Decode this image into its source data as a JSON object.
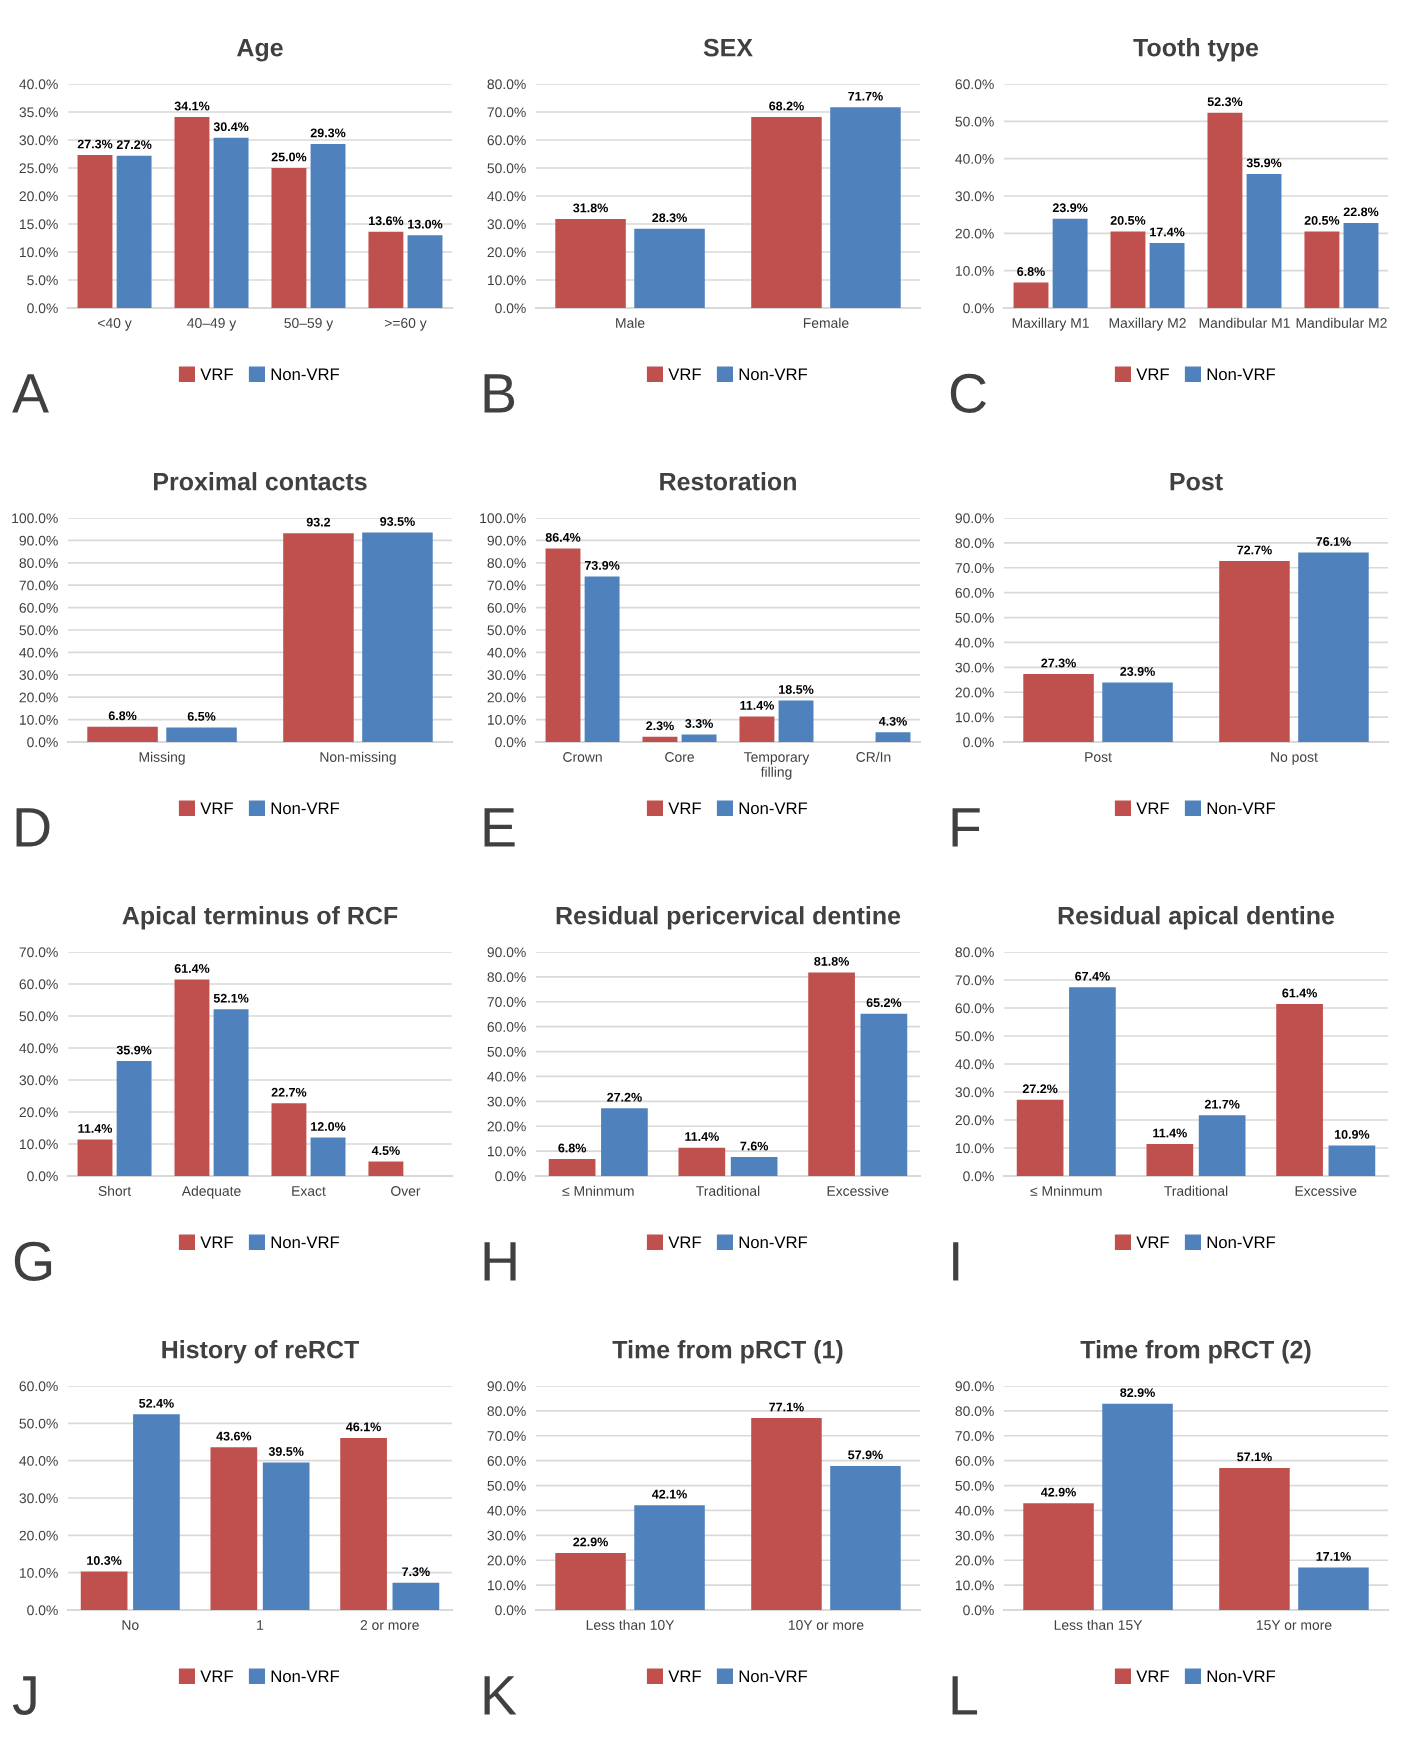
{
  "chart_data": [
    {
      "type": "bar",
      "title": "Age",
      "categories": [
        "<40 y",
        "40–49 y",
        "50–59 y",
        ">=60 y"
      ],
      "series": [
        {
          "name": "VRF",
          "color": "#c0504d",
          "values": [
            27.3,
            34.1,
            25.0,
            13.6
          ],
          "value_labels": [
            "27.3%",
            "34.1%",
            "25.0%",
            "13.6%"
          ]
        },
        {
          "name": "Non-VRF",
          "color": "#4f81bd",
          "values": [
            27.2,
            30.4,
            29.3,
            13.0
          ],
          "value_labels": [
            "27.2%",
            "30.4%",
            "29.3%",
            "13.0%"
          ]
        }
      ],
      "ylim": [
        0,
        40
      ],
      "yticks": [
        {
          "value": 0,
          "label": "0.0%"
        },
        {
          "value": 5,
          "label": "5.0%"
        },
        {
          "value": 10,
          "label": "10.0%"
        },
        {
          "value": 15,
          "label": "15.0%"
        },
        {
          "value": 20,
          "label": "20.0%"
        },
        {
          "value": 25,
          "label": "25.0%"
        },
        {
          "value": 30,
          "label": "30.0%"
        },
        {
          "value": 35,
          "label": "35.0%"
        },
        {
          "value": 40,
          "label": "40.0%"
        }
      ],
      "grid": "y",
      "legend": "bottom",
      "annotations": [
        "A"
      ]
    },
    {
      "type": "bar",
      "title": "SEX",
      "categories": [
        "Male",
        "Female"
      ],
      "series": [
        {
          "name": "VRF",
          "color": "#c0504d",
          "values": [
            31.8,
            68.2
          ],
          "value_labels": [
            "31.8%",
            "68.2%"
          ]
        },
        {
          "name": "Non-VRF",
          "color": "#4f81bd",
          "values": [
            28.3,
            71.7
          ],
          "value_labels": [
            "28.3%",
            "71.7%"
          ]
        }
      ],
      "ylim": [
        0,
        80
      ],
      "yticks": [
        {
          "value": 0,
          "label": "0.0%"
        },
        {
          "value": 10,
          "label": "10.0%"
        },
        {
          "value": 20,
          "label": "20.0%"
        },
        {
          "value": 30,
          "label": "30.0%"
        },
        {
          "value": 40,
          "label": "40.0%"
        },
        {
          "value": 50,
          "label": "50.0%"
        },
        {
          "value": 60,
          "label": "60.0%"
        },
        {
          "value": 70,
          "label": "70.0%"
        },
        {
          "value": 80,
          "label": "80.0%"
        }
      ],
      "grid": "y",
      "legend": "bottom",
      "annotations": [
        "B"
      ]
    },
    {
      "type": "bar",
      "title": "Tooth type",
      "categories": [
        "Maxillary M1",
        "Maxillary M2",
        "Mandibular M1",
        "Mandibular M2"
      ],
      "series": [
        {
          "name": "VRF",
          "color": "#c0504d",
          "values": [
            6.8,
            20.5,
            52.3,
            20.5
          ],
          "value_labels": [
            "6.8%",
            "20.5%",
            "52.3%",
            "20.5%"
          ]
        },
        {
          "name": "Non-VRF",
          "color": "#4f81bd",
          "values": [
            23.9,
            17.4,
            35.9,
            22.8
          ],
          "value_labels": [
            "23.9%",
            "17.4%",
            "35.9%",
            "22.8%"
          ]
        }
      ],
      "ylim": [
        0,
        60
      ],
      "yticks": [
        {
          "value": 0,
          "label": "0.0%"
        },
        {
          "value": 10,
          "label": "10.0%"
        },
        {
          "value": 20,
          "label": "20.0%"
        },
        {
          "value": 30,
          "label": "30.0%"
        },
        {
          "value": 40,
          "label": "40.0%"
        },
        {
          "value": 50,
          "label": "50.0%"
        },
        {
          "value": 60,
          "label": "60.0%"
        }
      ],
      "grid": "y",
      "legend": "bottom",
      "annotations": [
        "C"
      ]
    },
    {
      "type": "bar",
      "title": "Proximal contacts",
      "categories": [
        "Missing",
        "Non-missing"
      ],
      "series": [
        {
          "name": "VRF",
          "color": "#c0504d",
          "values": [
            6.8,
            93.2
          ],
          "value_labels": [
            "6.8%",
            "93.2"
          ]
        },
        {
          "name": "Non-VRF",
          "color": "#4f81bd",
          "values": [
            6.5,
            93.5
          ],
          "value_labels": [
            "6.5%",
            "93.5%"
          ]
        }
      ],
      "ylim": [
        0,
        100
      ],
      "yticks": [
        {
          "value": 0,
          "label": "0.0%"
        },
        {
          "value": 10,
          "label": "10.0%"
        },
        {
          "value": 20,
          "label": "20.0%"
        },
        {
          "value": 30,
          "label": "30.0%"
        },
        {
          "value": 40,
          "label": "40.0%"
        },
        {
          "value": 50,
          "label": "50.0%"
        },
        {
          "value": 60,
          "label": "60.0%"
        },
        {
          "value": 70,
          "label": "70.0%"
        },
        {
          "value": 80,
          "label": "80.0%"
        },
        {
          "value": 90,
          "label": "90.0%"
        },
        {
          "value": 100,
          "label": "100.0%"
        }
      ],
      "grid": "y",
      "legend": "bottom",
      "annotations": [
        "D"
      ]
    },
    {
      "type": "bar",
      "title": "Restoration",
      "categories": [
        "Crown",
        "Core",
        "Temporary\nfilling",
        "CR/In"
      ],
      "series": [
        {
          "name": "VRF",
          "color": "#c0504d",
          "values": [
            86.4,
            2.3,
            11.4,
            null
          ],
          "value_labels": [
            "86.4%",
            "2.3%",
            "11.4%",
            null
          ]
        },
        {
          "name": "Non-VRF",
          "color": "#4f81bd",
          "values": [
            73.9,
            3.3,
            18.5,
            4.3
          ],
          "value_labels": [
            "73.9%",
            "3.3%",
            "18.5%",
            "4.3%"
          ]
        }
      ],
      "ylim": [
        0,
        100
      ],
      "yticks": [
        {
          "value": 0,
          "label": "0.0%"
        },
        {
          "value": 10,
          "label": "10.0%"
        },
        {
          "value": 20,
          "label": "20.0%"
        },
        {
          "value": 30,
          "label": "30.0%"
        },
        {
          "value": 40,
          "label": "40.0%"
        },
        {
          "value": 50,
          "label": "50.0%"
        },
        {
          "value": 60,
          "label": "60.0%"
        },
        {
          "value": 70,
          "label": "70.0%"
        },
        {
          "value": 80,
          "label": "80.0%"
        },
        {
          "value": 90,
          "label": "90.0%"
        },
        {
          "value": 100,
          "label": "100.0%"
        }
      ],
      "grid": "y",
      "legend": "bottom",
      "annotations": [
        "E"
      ]
    },
    {
      "type": "bar",
      "title": "Post",
      "categories": [
        "Post",
        "No post"
      ],
      "series": [
        {
          "name": "VRF",
          "color": "#c0504d",
          "values": [
            27.3,
            72.7
          ],
          "value_labels": [
            "27.3%",
            "72.7%"
          ]
        },
        {
          "name": "Non-VRF",
          "color": "#4f81bd",
          "values": [
            23.9,
            76.1
          ],
          "value_labels": [
            "23.9%",
            "76.1%"
          ]
        }
      ],
      "ylim": [
        0,
        90
      ],
      "yticks": [
        {
          "value": 0,
          "label": "0.0%"
        },
        {
          "value": 10,
          "label": "10.0%"
        },
        {
          "value": 20,
          "label": "20.0%"
        },
        {
          "value": 30,
          "label": "30.0%"
        },
        {
          "value": 40,
          "label": "40.0%"
        },
        {
          "value": 50,
          "label": "50.0%"
        },
        {
          "value": 60,
          "label": "60.0%"
        },
        {
          "value": 70,
          "label": "70.0%"
        },
        {
          "value": 80,
          "label": "80.0%"
        },
        {
          "value": 90,
          "label": "90.0%"
        }
      ],
      "grid": "y",
      "legend": "bottom",
      "annotations": [
        "F"
      ]
    },
    {
      "type": "bar",
      "title": "Apical terminus of RCF",
      "categories": [
        "Short",
        "Adequate",
        "Exact",
        "Over"
      ],
      "series": [
        {
          "name": "VRF",
          "color": "#c0504d",
          "values": [
            11.4,
            61.4,
            22.7,
            4.5
          ],
          "value_labels": [
            "11.4%",
            "61.4%",
            "22.7%",
            "4.5%"
          ]
        },
        {
          "name": "Non-VRF",
          "color": "#4f81bd",
          "values": [
            35.9,
            52.1,
            12.0,
            null
          ],
          "value_labels": [
            "35.9%",
            "52.1%",
            "12.0%",
            null
          ]
        }
      ],
      "ylim": [
        0,
        70
      ],
      "yticks": [
        {
          "value": 0,
          "label": "0.0%"
        },
        {
          "value": 10,
          "label": "10.0%"
        },
        {
          "value": 20,
          "label": "20.0%"
        },
        {
          "value": 30,
          "label": "30.0%"
        },
        {
          "value": 40,
          "label": "40.0%"
        },
        {
          "value": 50,
          "label": "50.0%"
        },
        {
          "value": 60,
          "label": "60.0%"
        },
        {
          "value": 70,
          "label": "70.0%"
        }
      ],
      "grid": "y",
      "legend": "bottom",
      "annotations": [
        "G"
      ]
    },
    {
      "type": "bar",
      "title": "Residual pericervical dentine",
      "categories": [
        "≤ Mninmum",
        "Traditional",
        "Excessive"
      ],
      "series": [
        {
          "name": "VRF",
          "color": "#c0504d",
          "values": [
            6.8,
            11.4,
            81.8
          ],
          "value_labels": [
            "6.8%",
            "11.4%",
            "81.8%"
          ]
        },
        {
          "name": "Non-VRF",
          "color": "#4f81bd",
          "values": [
            27.2,
            7.6,
            65.2
          ],
          "value_labels": [
            "27.2%",
            "7.6%",
            "65.2%"
          ]
        }
      ],
      "ylim": [
        0,
        90
      ],
      "yticks": [
        {
          "value": 0,
          "label": "0.0%"
        },
        {
          "value": 10,
          "label": "10.0%"
        },
        {
          "value": 20,
          "label": "20.0%"
        },
        {
          "value": 30,
          "label": "30.0%"
        },
        {
          "value": 40,
          "label": "40.0%"
        },
        {
          "value": 50,
          "label": "50.0%"
        },
        {
          "value": 60,
          "label": "60.0%"
        },
        {
          "value": 70,
          "label": "70.0%"
        },
        {
          "value": 80,
          "label": "80.0%"
        },
        {
          "value": 90,
          "label": "90.0%"
        }
      ],
      "grid": "y",
      "legend": "bottom",
      "annotations": [
        "H"
      ]
    },
    {
      "type": "bar",
      "title": "Residual apical dentine",
      "categories": [
        "≤ Mninmum",
        "Traditional",
        "Excessive"
      ],
      "series": [
        {
          "name": "VRF",
          "color": "#c0504d",
          "values": [
            27.2,
            11.4,
            61.4
          ],
          "value_labels": [
            "27.2%",
            "11.4%",
            "61.4%"
          ]
        },
        {
          "name": "Non-VRF",
          "color": "#4f81bd",
          "values": [
            67.4,
            21.7,
            10.9
          ],
          "value_labels": [
            "67.4%",
            "21.7%",
            "10.9%"
          ]
        }
      ],
      "ylim": [
        0,
        80
      ],
      "yticks": [
        {
          "value": 0,
          "label": "0.0%"
        },
        {
          "value": 10,
          "label": "10.0%"
        },
        {
          "value": 20,
          "label": "20.0%"
        },
        {
          "value": 30,
          "label": "30.0%"
        },
        {
          "value": 40,
          "label": "40.0%"
        },
        {
          "value": 50,
          "label": "50.0%"
        },
        {
          "value": 60,
          "label": "60.0%"
        },
        {
          "value": 70,
          "label": "70.0%"
        },
        {
          "value": 80,
          "label": "80.0%"
        }
      ],
      "grid": "y",
      "legend": "bottom",
      "annotations": [
        "I"
      ]
    },
    {
      "type": "bar",
      "title": "History of reRCT",
      "categories": [
        "No",
        "1",
        "2 or more"
      ],
      "series": [
        {
          "name": "VRF",
          "color": "#c0504d",
          "values": [
            10.3,
            43.6,
            46.1
          ],
          "value_labels": [
            "10.3%",
            "43.6%",
            "46.1%"
          ]
        },
        {
          "name": "Non-VRF",
          "color": "#4f81bd",
          "values": [
            52.4,
            39.5,
            7.3
          ],
          "value_labels": [
            "52.4%",
            "39.5%",
            "7.3%"
          ]
        }
      ],
      "ylim": [
        0,
        60
      ],
      "yticks": [
        {
          "value": 0,
          "label": "0.0%"
        },
        {
          "value": 10,
          "label": "10.0%"
        },
        {
          "value": 20,
          "label": "20.0%"
        },
        {
          "value": 30,
          "label": "30.0%"
        },
        {
          "value": 40,
          "label": "40.0%"
        },
        {
          "value": 50,
          "label": "50.0%"
        },
        {
          "value": 60,
          "label": "60.0%"
        }
      ],
      "grid": "y",
      "legend": "bottom",
      "annotations": [
        "J"
      ]
    },
    {
      "type": "bar",
      "title": "Time from pRCT (1)",
      "categories": [
        "Less than 10Y",
        "10Y or more"
      ],
      "series": [
        {
          "name": "VRF",
          "color": "#c0504d",
          "values": [
            22.9,
            77.1
          ],
          "value_labels": [
            "22.9%",
            "77.1%"
          ]
        },
        {
          "name": "Non-VRF",
          "color": "#4f81bd",
          "values": [
            42.1,
            57.9
          ],
          "value_labels": [
            "42.1%",
            "57.9%"
          ]
        }
      ],
      "ylim": [
        0,
        90
      ],
      "yticks": [
        {
          "value": 0,
          "label": "0.0%"
        },
        {
          "value": 10,
          "label": "10.0%"
        },
        {
          "value": 20,
          "label": "20.0%"
        },
        {
          "value": 30,
          "label": "30.0%"
        },
        {
          "value": 40,
          "label": "40.0%"
        },
        {
          "value": 50,
          "label": "50.0%"
        },
        {
          "value": 60,
          "label": "60.0%"
        },
        {
          "value": 70,
          "label": "70.0%"
        },
        {
          "value": 80,
          "label": "80.0%"
        },
        {
          "value": 90,
          "label": "90.0%"
        }
      ],
      "grid": "y",
      "legend": "bottom",
      "annotations": [
        "K"
      ]
    },
    {
      "type": "bar",
      "title": "Time from pRCT (2)",
      "categories": [
        "Less than 15Y",
        "15Y or more"
      ],
      "series": [
        {
          "name": "VRF",
          "color": "#c0504d",
          "values": [
            42.9,
            57.1
          ],
          "value_labels": [
            "42.9%",
            "57.1%"
          ]
        },
        {
          "name": "Non-VRF",
          "color": "#4f81bd",
          "values": [
            82.9,
            17.1
          ],
          "value_labels": [
            "82.9%",
            "17.1%"
          ]
        }
      ],
      "ylim": [
        0,
        90
      ],
      "yticks": [
        {
          "value": 0,
          "label": "0.0%"
        },
        {
          "value": 10,
          "label": "10.0%"
        },
        {
          "value": 20,
          "label": "20.0%"
        },
        {
          "value": 30,
          "label": "30.0%"
        },
        {
          "value": 40,
          "label": "40.0%"
        },
        {
          "value": 50,
          "label": "50.0%"
        },
        {
          "value": 60,
          "label": "60.0%"
        },
        {
          "value": 70,
          "label": "70.0%"
        },
        {
          "value": 80,
          "label": "80.0%"
        },
        {
          "value": 90,
          "label": "90.0%"
        }
      ],
      "grid": "y",
      "legend": "bottom",
      "annotations": [
        "L"
      ]
    }
  ]
}
